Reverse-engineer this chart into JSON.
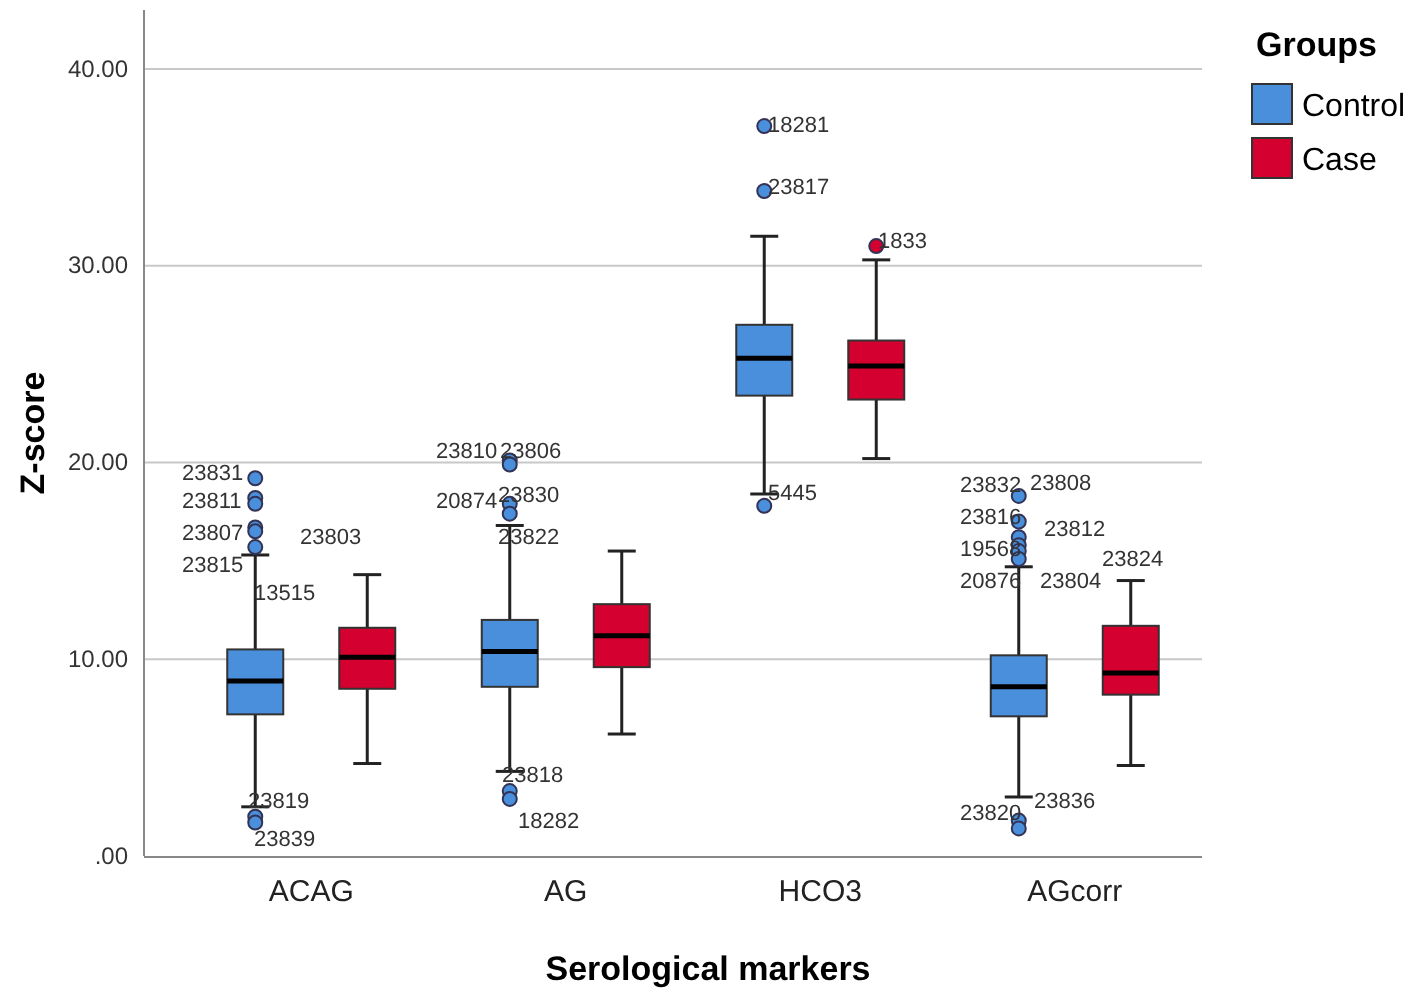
{
  "chart_data": {
    "type": "box",
    "xlabel": "Serological markers",
    "ylabel": "Z-score",
    "legend_title": "Groups",
    "legend": "top right",
    "grid": "y",
    "categories": [
      "ACAG",
      "AG",
      "HCO3",
      "AGcorr"
    ],
    "ylim": [
      0,
      43
    ],
    "yticks": [
      {
        "value": 0,
        "label": ".00"
      },
      {
        "value": 10,
        "label": "10.00"
      },
      {
        "value": 20,
        "label": "20.00"
      },
      {
        "value": 30,
        "label": "30.00"
      },
      {
        "value": 40,
        "label": "40.00"
      }
    ],
    "series": [
      {
        "name": "Control",
        "color": "#4a8fdc",
        "boxes": [
          {
            "low": 2.5,
            "q1": 7.2,
            "median": 8.9,
            "q3": 10.5,
            "high": 15.3,
            "outliers": [
              19.2,
              18.2,
              17.9,
              16.7,
              16.5,
              15.7,
              2.0,
              1.7
            ]
          },
          {
            "low": 4.3,
            "q1": 8.6,
            "median": 10.4,
            "q3": 12.0,
            "high": 16.8,
            "outliers": [
              20.1,
              19.9,
              17.9,
              17.4,
              3.3,
              2.9
            ]
          },
          {
            "low": 18.4,
            "q1": 23.4,
            "median": 25.3,
            "q3": 27.0,
            "high": 31.5,
            "outliers": [
              37.1,
              33.8,
              17.8
            ]
          },
          {
            "low": 3.0,
            "q1": 7.1,
            "median": 8.6,
            "q3": 10.2,
            "high": 14.7,
            "outliers": [
              18.3,
              17.0,
              16.2,
              15.8,
              15.5,
              15.1,
              1.8,
              1.4
            ]
          }
        ]
      },
      {
        "name": "Case",
        "color": "#d40030",
        "boxes": [
          {
            "low": 4.7,
            "q1": 8.5,
            "median": 10.1,
            "q3": 11.6,
            "high": 14.3
          },
          {
            "low": 6.2,
            "q1": 9.6,
            "median": 11.2,
            "q3": 12.8,
            "high": 15.5
          },
          {
            "low": 20.2,
            "q1": 23.2,
            "median": 24.9,
            "q3": 26.2,
            "high": 30.3,
            "outliers": [
              31.0
            ]
          },
          {
            "low": 4.6,
            "q1": 8.2,
            "median": 9.3,
            "q3": 11.7,
            "high": 14.0
          }
        ]
      }
    ],
    "annotations": [
      "23831",
      "23811",
      "23807",
      "23803",
      "23815",
      "13515",
      "23819",
      "23839",
      "23810",
      "23806",
      "20874",
      "23830",
      "23822",
      "23818",
      "18282",
      "18281",
      "23817",
      "5445",
      "1833",
      "23832",
      "23808",
      "23816",
      "23812",
      "19568",
      "20876",
      "23804",
      "23824",
      "23820",
      "23836"
    ]
  }
}
